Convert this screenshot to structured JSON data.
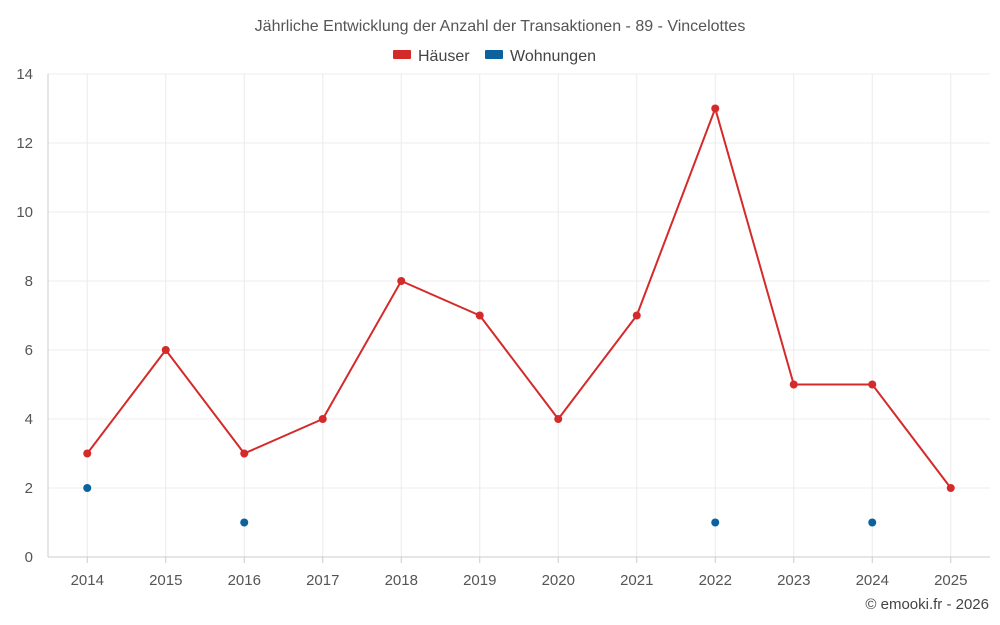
{
  "chart_data": {
    "type": "line",
    "title": "Jährliche Entwicklung der Anzahl der Transaktionen - 89 - Vincelottes",
    "x": [
      "2014",
      "2015",
      "2016",
      "2017",
      "2018",
      "2019",
      "2020",
      "2021",
      "2022",
      "2023",
      "2024",
      "2025"
    ],
    "y_ticks": [
      "0",
      "2",
      "4",
      "6",
      "8",
      "10",
      "12",
      "14"
    ],
    "ylim": [
      0,
      14
    ],
    "grid": true,
    "legend_position": "top-center",
    "series": [
      {
        "name": "Häuser",
        "color": "#d42a2a",
        "style": "line-markers",
        "values": [
          3,
          6,
          3,
          4,
          8,
          7,
          4,
          7,
          13,
          5,
          5,
          2
        ]
      },
      {
        "name": "Wohnungen",
        "color": "#0b629f",
        "style": "markers",
        "values": [
          2,
          null,
          1,
          null,
          null,
          null,
          null,
          null,
          1,
          null,
          1,
          null
        ]
      }
    ],
    "credit": "© emooki.fr - 2026"
  }
}
